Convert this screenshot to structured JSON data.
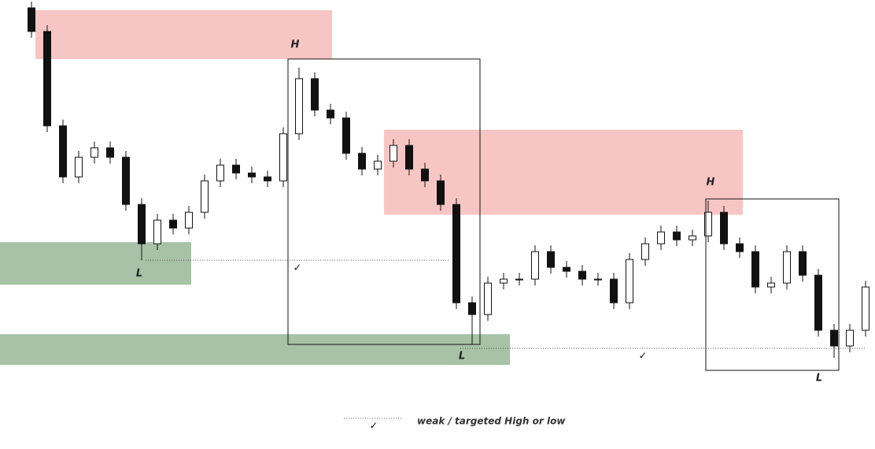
{
  "chart_data": {
    "type": "candlestick",
    "xlim": [
      -2,
      53.6
    ],
    "ylim": [
      0,
      571
    ],
    "open": [
      561,
      531,
      411,
      346,
      371,
      383,
      371,
      311,
      261,
      291,
      281,
      301,
      341,
      361,
      351,
      346,
      341,
      401,
      471,
      431,
      421,
      376,
      356,
      366,
      386,
      356,
      341,
      311,
      186,
      171,
      211,
      216,
      216,
      251,
      231,
      226,
      216,
      216,
      186,
      241,
      261,
      276,
      266,
      271,
      301,
      261,
      251,
      206,
      211,
      251,
      221,
      151,
      131,
      151
    ],
    "high": [
      569,
      539,
      419,
      379,
      391,
      391,
      379,
      319,
      299,
      299,
      309,
      349,
      369,
      369,
      359,
      354,
      409,
      485,
      479,
      439,
      429,
      384,
      374,
      394,
      394,
      364,
      349,
      319,
      194,
      219,
      224,
      224,
      259,
      259,
      239,
      234,
      224,
      224,
      249,
      269,
      284,
      284,
      279,
      316,
      309,
      269,
      259,
      219,
      259,
      259,
      229,
      159,
      159,
      214
    ],
    "low": [
      523,
      403,
      338,
      338,
      363,
      363,
      303,
      240,
      253,
      273,
      273,
      293,
      333,
      343,
      338,
      333,
      333,
      393,
      423,
      413,
      368,
      348,
      348,
      358,
      348,
      333,
      303,
      178,
      133,
      163,
      203,
      208,
      208,
      223,
      218,
      208,
      208,
      178,
      178,
      233,
      253,
      258,
      258,
      263,
      253,
      243,
      198,
      198,
      203,
      213,
      143,
      116,
      123,
      143
    ],
    "close": [
      531,
      411,
      346,
      371,
      383,
      371,
      311,
      261,
      291,
      281,
      301,
      341,
      361,
      351,
      346,
      341,
      401,
      471,
      431,
      421,
      376,
      356,
      366,
      386,
      356,
      341,
      311,
      186,
      171,
      211,
      216,
      216,
      251,
      231,
      226,
      216,
      216,
      186,
      241,
      261,
      276,
      266,
      271,
      301,
      261,
      251,
      206,
      211,
      251,
      221,
      151,
      131,
      151,
      206
    ],
    "zones": [
      {
        "color": "#f7c6c4",
        "x": [
          0.25,
          19.1
        ],
        "y": [
          496,
          558
        ]
      },
      {
        "color": "#f7c6c4",
        "x": [
          22.4,
          45.2
        ],
        "y": [
          298,
          406
        ]
      },
      {
        "color": "#a7c2a6",
        "x": [
          -2,
          10.15
        ],
        "y": [
          209,
          263
        ]
      },
      {
        "color": "#a7c2a6",
        "x": [
          -2,
          30.4
        ],
        "y": [
          107,
          146
        ]
      }
    ],
    "boxes": [
      {
        "x": [
          16.3,
          28.5
        ],
        "y": [
          133,
          496
        ]
      },
      {
        "x": [
          42.85,
          51.3
        ],
        "y": [
          100,
          318
        ]
      }
    ],
    "levels": [
      {
        "x": [
          7.25,
          26.5
        ],
        "y": 240
      },
      {
        "x": [
          27.25,
          53
        ],
        "y": 128
      }
    ],
    "annotations": [
      {
        "text": "H",
        "x": 16.75,
        "y": 514
      },
      {
        "text": "L",
        "x": 6.85,
        "y": 223
      },
      {
        "text": "L",
        "x": 27.35,
        "y": 118
      },
      {
        "text": "H",
        "x": 43.15,
        "y": 339
      },
      {
        "text": "L",
        "x": 50.05,
        "y": 90
      },
      {
        "text": "✓",
        "x": 16.9,
        "y": 230
      },
      {
        "text": "✓",
        "x": 38.85,
        "y": 118
      }
    ],
    "legend": {
      "symbol": "✓",
      "text": "weak / targeted High or low"
    }
  }
}
